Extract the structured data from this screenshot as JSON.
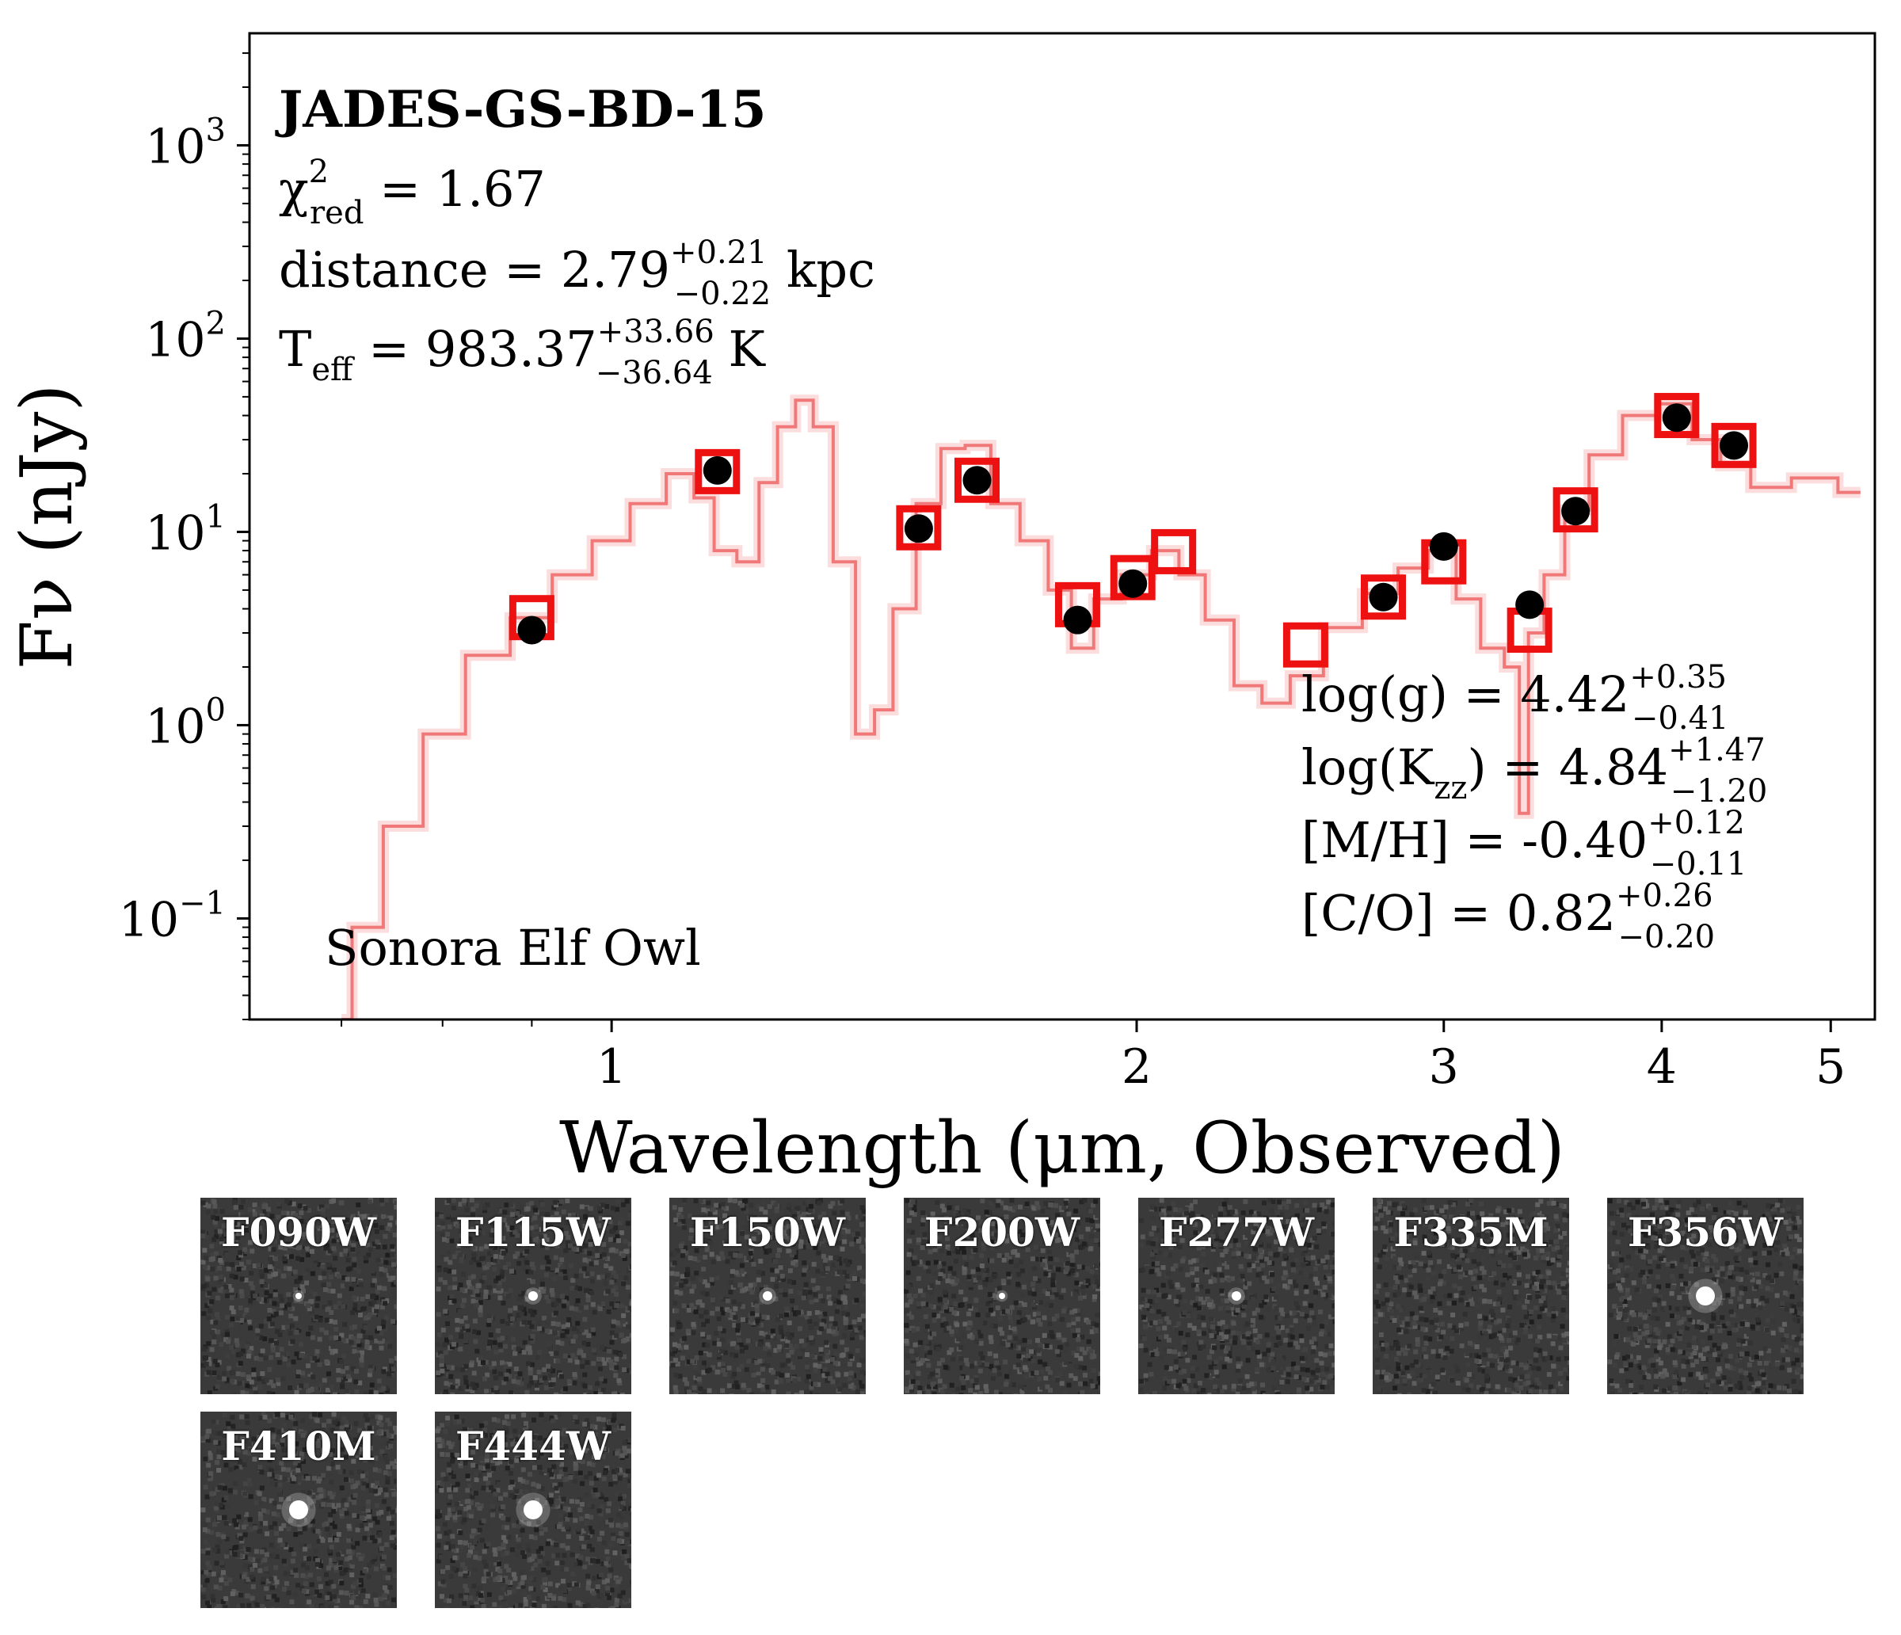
{
  "chart_data": {
    "type": "scatter",
    "title": "JADES-GS-BD-15",
    "xlabel": "Wavelength (μm, Observed)",
    "ylabel": "Fν (nJy)",
    "x_scale": "log",
    "y_scale": "log",
    "xlim": [
      0.62,
      5.3
    ],
    "ylim": [
      0.03,
      3800
    ],
    "x_ticks": [
      1,
      2,
      3,
      4,
      5
    ],
    "x_tick_labels": [
      "1",
      "2",
      "3",
      "4",
      "5"
    ],
    "y_ticks": [
      0.1,
      1,
      10,
      100,
      1000
    ],
    "y_tick_labels": [
      {
        "base": "10",
        "exp": "−1"
      },
      {
        "base": "10",
        "exp": "0"
      },
      {
        "base": "10",
        "exp": "1"
      },
      {
        "base": "10",
        "exp": "2"
      },
      {
        "base": "10",
        "exp": "3"
      }
    ],
    "fit_stats": {
      "chi_prefix": "χ",
      "chi_sup": "2",
      "chi_sub": "red",
      "chi_value": " = 1.67",
      "distance_prefix": "distance = 2.79",
      "distance_sup": "+0.21",
      "distance_sub": "−0.22",
      "distance_unit": " kpc",
      "teff_prefix": "T",
      "teff_sub_label": "eff",
      "teff_mid": " = 983.37",
      "teff_sup": "+33.66",
      "teff_sub": "−36.64",
      "teff_unit": " K"
    },
    "params": [
      {
        "label": "log(g) = 4.42",
        "sup": "+0.35",
        "sub": "−0.41"
      },
      {
        "label": "log(K",
        "label_sub": "zz",
        "label_after": ") = 4.84",
        "sup": "+1.47",
        "sub": "−1.20"
      },
      {
        "label": "[M/H] = -0.40",
        "sup": "+0.12",
        "sub": "−0.11"
      },
      {
        "label": "[C/O] = 0.82",
        "sup": "+0.26",
        "sub": "−0.20"
      }
    ],
    "model_name": "Sonora Elf Owl",
    "series": [
      {
        "name": "model photometry",
        "marker": "open-square",
        "color": "#ee1111",
        "points": [
          {
            "x": 0.9,
            "y": 3.6
          },
          {
            "x": 1.15,
            "y": 20.5
          },
          {
            "x": 1.5,
            "y": 10.5
          },
          {
            "x": 1.62,
            "y": 18.5
          },
          {
            "x": 1.85,
            "y": 4.2
          },
          {
            "x": 1.99,
            "y": 5.8
          },
          {
            "x": 2.1,
            "y": 7.9
          },
          {
            "x": 2.5,
            "y": 2.6
          },
          {
            "x": 2.77,
            "y": 4.6
          },
          {
            "x": 3.0,
            "y": 7.0
          },
          {
            "x": 3.36,
            "y": 3.1
          },
          {
            "x": 3.57,
            "y": 13.0
          },
          {
            "x": 4.08,
            "y": 40.0
          },
          {
            "x": 4.4,
            "y": 28.0
          }
        ]
      },
      {
        "name": "observed photometry",
        "marker": "filled-circle",
        "color": "#000000",
        "points": [
          {
            "x": 0.9,
            "y": 3.1
          },
          {
            "x": 1.15,
            "y": 20.8
          },
          {
            "x": 1.5,
            "y": 10.4
          },
          {
            "x": 1.62,
            "y": 18.5
          },
          {
            "x": 1.85,
            "y": 3.5
          },
          {
            "x": 1.99,
            "y": 5.4
          },
          {
            "x": 2.77,
            "y": 4.6
          },
          {
            "x": 3.0,
            "y": 8.4
          },
          {
            "x": 3.36,
            "y": 4.2
          },
          {
            "x": 3.57,
            "y": 12.8
          },
          {
            "x": 4.08,
            "y": 39.0
          },
          {
            "x": 4.4,
            "y": 28.0
          }
        ]
      },
      {
        "name": "model spectrum",
        "marker": "line",
        "color": "#f07878",
        "points": [
          {
            "x": 0.7,
            "y": 0.03
          },
          {
            "x": 0.72,
            "y": 0.09
          },
          {
            "x": 0.76,
            "y": 0.3
          },
          {
            "x": 0.8,
            "y": 0.9
          },
          {
            "x": 0.85,
            "y": 2.3
          },
          {
            "x": 0.9,
            "y": 3.6
          },
          {
            "x": 0.95,
            "y": 6.0
          },
          {
            "x": 1.0,
            "y": 9.0
          },
          {
            "x": 1.05,
            "y": 14.0
          },
          {
            "x": 1.1,
            "y": 20.0
          },
          {
            "x": 1.13,
            "y": 15.0
          },
          {
            "x": 1.16,
            "y": 8.0
          },
          {
            "x": 1.2,
            "y": 7.0
          },
          {
            "x": 1.23,
            "y": 18.0
          },
          {
            "x": 1.26,
            "y": 35.0
          },
          {
            "x": 1.29,
            "y": 48.0
          },
          {
            "x": 1.32,
            "y": 35.0
          },
          {
            "x": 1.36,
            "y": 7.0
          },
          {
            "x": 1.4,
            "y": 0.9
          },
          {
            "x": 1.43,
            "y": 1.2
          },
          {
            "x": 1.47,
            "y": 4.0
          },
          {
            "x": 1.52,
            "y": 14.0
          },
          {
            "x": 1.57,
            "y": 27.0
          },
          {
            "x": 1.62,
            "y": 28.0
          },
          {
            "x": 1.68,
            "y": 14.0
          },
          {
            "x": 1.75,
            "y": 9.0
          },
          {
            "x": 1.81,
            "y": 5.0
          },
          {
            "x": 1.86,
            "y": 2.5
          },
          {
            "x": 1.92,
            "y": 4.5
          },
          {
            "x": 2.0,
            "y": 6.0
          },
          {
            "x": 2.08,
            "y": 8.0
          },
          {
            "x": 2.15,
            "y": 6.0
          },
          {
            "x": 2.23,
            "y": 3.5
          },
          {
            "x": 2.32,
            "y": 1.6
          },
          {
            "x": 2.4,
            "y": 1.3
          },
          {
            "x": 2.5,
            "y": 1.8
          },
          {
            "x": 2.62,
            "y": 3.2
          },
          {
            "x": 2.77,
            "y": 4.8
          },
          {
            "x": 2.88,
            "y": 6.5
          },
          {
            "x": 3.0,
            "y": 8.0
          },
          {
            "x": 3.1,
            "y": 4.5
          },
          {
            "x": 3.2,
            "y": 2.5
          },
          {
            "x": 3.3,
            "y": 2.0
          },
          {
            "x": 3.33,
            "y": 0.35
          },
          {
            "x": 3.38,
            "y": 3.0
          },
          {
            "x": 3.47,
            "y": 6.0
          },
          {
            "x": 3.57,
            "y": 13.0
          },
          {
            "x": 3.7,
            "y": 25.0
          },
          {
            "x": 3.9,
            "y": 40.0
          },
          {
            "x": 4.08,
            "y": 46.0
          },
          {
            "x": 4.25,
            "y": 30.0
          },
          {
            "x": 4.4,
            "y": 22.0
          },
          {
            "x": 4.6,
            "y": 17.0
          },
          {
            "x": 4.9,
            "y": 19.0
          },
          {
            "x": 5.2,
            "y": 16.0
          }
        ]
      }
    ]
  },
  "cutouts": [
    {
      "label": "F090W",
      "source": "faint-point"
    },
    {
      "label": "F115W",
      "source": "small-point"
    },
    {
      "label": "F150W",
      "source": "small-point"
    },
    {
      "label": "F200W",
      "source": "faint-point"
    },
    {
      "label": "F277W",
      "source": "small-point"
    },
    {
      "label": "F335M",
      "source": "none"
    },
    {
      "label": "F356W",
      "source": "bright-point"
    },
    {
      "label": "F410M",
      "source": "bright-point"
    },
    {
      "label": "F444W",
      "source": "bright-point"
    }
  ]
}
